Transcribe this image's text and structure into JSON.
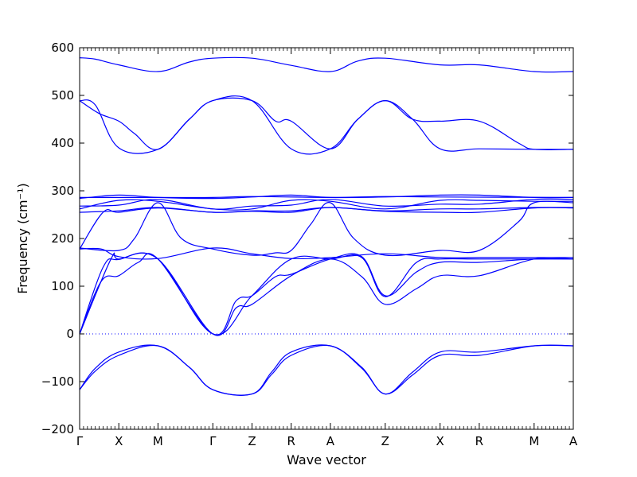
{
  "chart_data": {
    "type": "line",
    "xlabel": "Wave vector",
    "ylabel": "Frequency (cm⁻¹)",
    "ylim": [
      -200,
      600
    ],
    "yticks": [
      -200,
      -100,
      0,
      100,
      200,
      300,
      400,
      500,
      600
    ],
    "zero_line": true,
    "line_color": "#0000ff",
    "x_points": [
      {
        "label": "Γ",
        "x": 0
      },
      {
        "label": "X",
        "x": 1
      },
      {
        "label": "M",
        "x": 2
      },
      {
        "label": "Γ",
        "x": 3.4
      },
      {
        "label": "Z",
        "x": 4.4
      },
      {
        "label": "R",
        "x": 5.4
      },
      {
        "label": "A",
        "x": 6.4
      },
      {
        "label": "Z",
        "x": 7.8
      },
      {
        "label": "X",
        "x": 9.2
      },
      {
        "label": "R",
        "x": 10.2
      },
      {
        "label": "M",
        "x": 11.6
      },
      {
        "label": "A",
        "x": 12.6
      }
    ],
    "series": [
      {
        "values": [
          [
            0,
            -117
          ],
          [
            0.4,
            -72
          ],
          [
            1,
            -38
          ],
          [
            2,
            -25
          ],
          [
            2.8,
            -70
          ],
          [
            3.4,
            -117
          ],
          [
            4.4,
            -126
          ],
          [
            4.9,
            -80
          ],
          [
            5.4,
            -38
          ],
          [
            6.4,
            -25
          ],
          [
            7.2,
            -70
          ],
          [
            7.8,
            -126
          ],
          [
            8.5,
            -80
          ],
          [
            9.2,
            -38
          ],
          [
            10.2,
            -38
          ],
          [
            11.6,
            -25
          ],
          [
            12.6,
            -25
          ]
        ]
      },
      {
        "values": [
          [
            0,
            -117
          ],
          [
            0.4,
            -78
          ],
          [
            1,
            -45
          ],
          [
            2,
            -25
          ],
          [
            2.8,
            -70
          ],
          [
            3.4,
            -117
          ],
          [
            4.4,
            -126
          ],
          [
            4.9,
            -85
          ],
          [
            5.4,
            -45
          ],
          [
            6.4,
            -25
          ],
          [
            7.2,
            -72
          ],
          [
            7.8,
            -126
          ],
          [
            8.5,
            -86
          ],
          [
            9.2,
            -45
          ],
          [
            10.2,
            -45
          ],
          [
            11.6,
            -25
          ],
          [
            12.6,
            -25
          ]
        ]
      },
      {
        "values": [
          [
            0,
            0
          ],
          [
            0.6,
            140
          ],
          [
            1,
            156
          ],
          [
            2,
            157
          ],
          [
            3.4,
            0
          ],
          [
            4.4,
            80
          ],
          [
            5.4,
            157
          ],
          [
            6.4,
            157
          ],
          [
            7.2,
            160
          ],
          [
            7.8,
            78
          ],
          [
            8.6,
            150
          ],
          [
            9.2,
            157
          ],
          [
            10.2,
            157
          ],
          [
            11.6,
            157
          ],
          [
            12.6,
            157
          ]
        ]
      },
      {
        "values": [
          [
            0,
            0
          ],
          [
            0.55,
            110
          ],
          [
            1,
            122
          ],
          [
            1.5,
            150
          ],
          [
            2,
            157
          ],
          [
            3.4,
            0
          ],
          [
            4,
            70
          ],
          [
            4.4,
            80
          ],
          [
            5,
            120
          ],
          [
            5.4,
            125
          ],
          [
            6.4,
            157
          ],
          [
            7.2,
            162
          ],
          [
            7.8,
            80
          ],
          [
            8.6,
            130
          ],
          [
            9.2,
            150
          ],
          [
            10.2,
            150
          ],
          [
            11.6,
            157
          ],
          [
            12.6,
            157
          ]
        ]
      },
      {
        "values": [
          [
            0,
            0
          ],
          [
            0.8,
            157
          ],
          [
            1,
            157
          ],
          [
            2,
            157
          ],
          [
            3.4,
            0
          ],
          [
            4.0,
            55
          ],
          [
            4.4,
            62
          ],
          [
            5.4,
            122
          ],
          [
            6.4,
            157
          ],
          [
            7.2,
            120
          ],
          [
            7.8,
            62
          ],
          [
            8.6,
            95
          ],
          [
            9.2,
            122
          ],
          [
            10.2,
            122
          ],
          [
            11.6,
            157
          ],
          [
            12.6,
            157
          ]
        ]
      },
      {
        "values": [
          [
            0,
            180
          ],
          [
            1,
            175
          ],
          [
            1.4,
            200
          ],
          [
            2,
            275
          ],
          [
            2.6,
            200
          ],
          [
            3.4,
            178
          ],
          [
            4.4,
            165
          ],
          [
            5,
            170
          ],
          [
            5.4,
            175
          ],
          [
            5.9,
            230
          ],
          [
            6.4,
            275
          ],
          [
            7.0,
            200
          ],
          [
            7.8,
            165
          ],
          [
            9.2,
            175
          ],
          [
            10.2,
            175
          ],
          [
            11.2,
            235
          ],
          [
            11.6,
            275
          ],
          [
            12.6,
            275
          ]
        ]
      },
      {
        "values": [
          [
            0,
            178
          ],
          [
            0.55,
            178
          ],
          [
            1,
            162
          ],
          [
            2,
            158
          ],
          [
            3.4,
            180
          ],
          [
            4.4,
            168
          ],
          [
            5.4,
            158
          ],
          [
            6.4,
            160
          ],
          [
            7.8,
            168
          ],
          [
            9.2,
            160
          ],
          [
            10.2,
            160
          ],
          [
            11.6,
            160
          ],
          [
            12.6,
            160
          ]
        ]
      },
      {
        "values": [
          [
            0,
            178
          ],
          [
            0.6,
            255
          ],
          [
            1,
            255
          ],
          [
            2,
            264
          ],
          [
            3.4,
            255
          ],
          [
            4.4,
            257
          ],
          [
            5.4,
            255
          ],
          [
            6.4,
            265
          ],
          [
            7.8,
            257
          ],
          [
            9.2,
            255
          ],
          [
            10.2,
            255
          ],
          [
            11.6,
            264
          ],
          [
            12.6,
            264
          ]
        ]
      },
      {
        "values": [
          [
            0,
            255
          ],
          [
            1,
            258
          ],
          [
            2,
            265
          ],
          [
            3.4,
            255
          ],
          [
            4.4,
            258
          ],
          [
            5.4,
            258
          ],
          [
            6.4,
            265
          ],
          [
            7.8,
            258
          ],
          [
            9.2,
            262
          ],
          [
            10.2,
            262
          ],
          [
            11.6,
            265
          ],
          [
            12.6,
            265
          ]
        ]
      },
      {
        "values": [
          [
            0,
            262
          ],
          [
            1,
            280
          ],
          [
            2,
            278
          ],
          [
            3.4,
            262
          ],
          [
            4.4,
            262
          ],
          [
            5.4,
            280
          ],
          [
            6.4,
            278
          ],
          [
            7.8,
            262
          ],
          [
            9.2,
            280
          ],
          [
            10.2,
            280
          ],
          [
            11.6,
            278
          ],
          [
            12.6,
            278
          ]
        ]
      },
      {
        "values": [
          [
            0,
            268
          ],
          [
            1,
            270
          ],
          [
            2,
            282
          ],
          [
            3.4,
            262
          ],
          [
            4.4,
            268
          ],
          [
            5.4,
            270
          ],
          [
            6.4,
            282
          ],
          [
            7.8,
            268
          ],
          [
            9.2,
            272
          ],
          [
            10.2,
            272
          ],
          [
            11.6,
            282
          ],
          [
            12.6,
            282
          ]
        ]
      },
      {
        "values": [
          [
            0,
            284
          ],
          [
            1,
            291
          ],
          [
            2,
            286
          ],
          [
            3.4,
            284
          ],
          [
            4.4,
            287
          ],
          [
            5.4,
            291
          ],
          [
            6.4,
            286
          ],
          [
            7.8,
            287
          ],
          [
            9.2,
            291
          ],
          [
            10.2,
            291
          ],
          [
            11.6,
            286
          ],
          [
            12.6,
            286
          ]
        ]
      },
      {
        "values": [
          [
            0,
            286
          ],
          [
            2,
            286
          ],
          [
            3.4,
            286
          ],
          [
            4.4,
            288
          ],
          [
            6.4,
            286
          ],
          [
            7.8,
            288
          ],
          [
            9.2,
            287
          ],
          [
            12.6,
            286
          ]
        ]
      },
      {
        "values": [
          [
            0,
            489
          ],
          [
            0.4,
            480
          ],
          [
            1,
            390
          ],
          [
            2,
            387
          ],
          [
            2.8,
            450
          ],
          [
            3.4,
            489
          ],
          [
            4.4,
            489
          ],
          [
            5.4,
            388
          ],
          [
            6.4,
            388
          ],
          [
            7.1,
            450
          ],
          [
            7.8,
            489
          ],
          [
            8.5,
            450
          ],
          [
            9.2,
            388
          ],
          [
            10.2,
            388
          ],
          [
            11.6,
            387
          ],
          [
            12.6,
            387
          ]
        ]
      },
      {
        "values": [
          [
            0,
            489
          ],
          [
            0.5,
            462
          ],
          [
            1,
            446
          ],
          [
            1.4,
            420
          ],
          [
            2,
            387
          ],
          [
            2.8,
            450
          ],
          [
            3.4,
            489
          ],
          [
            4.4,
            489
          ],
          [
            5.0,
            446
          ],
          [
            5.4,
            446
          ],
          [
            6.4,
            388
          ],
          [
            7.1,
            450
          ],
          [
            7.8,
            489
          ],
          [
            8.5,
            450
          ],
          [
            9.2,
            446
          ],
          [
            10.2,
            446
          ],
          [
            11.2,
            400
          ],
          [
            11.6,
            387
          ],
          [
            12.6,
            387
          ]
        ]
      },
      {
        "values": [
          [
            0,
            579
          ],
          [
            0.4,
            576
          ],
          [
            1,
            564
          ],
          [
            2,
            550
          ],
          [
            2.8,
            570
          ],
          [
            3.4,
            578
          ],
          [
            4.4,
            578
          ],
          [
            5.4,
            563
          ],
          [
            6.4,
            550
          ],
          [
            7.1,
            572
          ],
          [
            7.8,
            578
          ],
          [
            9.2,
            564
          ],
          [
            10.2,
            564
          ],
          [
            11.6,
            550
          ],
          [
            12.6,
            550
          ]
        ]
      }
    ]
  }
}
